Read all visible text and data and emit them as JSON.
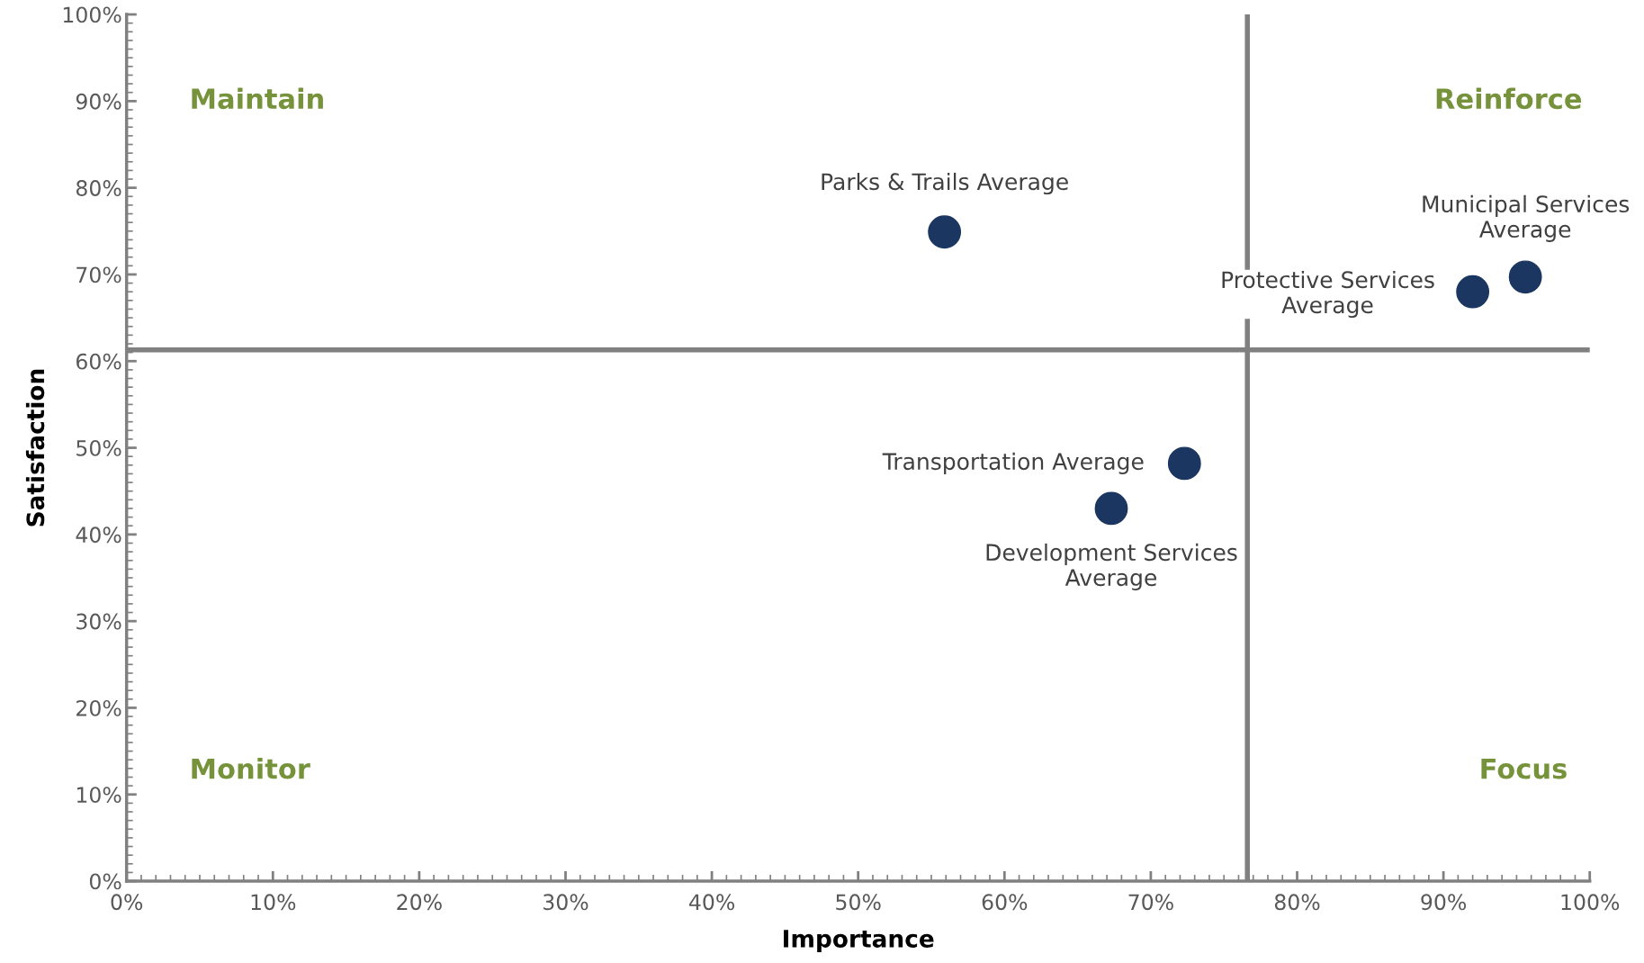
{
  "chart_data": {
    "type": "scatter",
    "xlabel": "Importance",
    "ylabel": "Satisfaction",
    "x": [
      55.9,
      95.6,
      92.0,
      72.3,
      67.3
    ],
    "series": [
      {
        "color": "#1b3660",
        "values": [
          74.9,
          69.7,
          68.0,
          48.2,
          43.0
        ]
      }
    ],
    "marker": "circle",
    "grid": false,
    "legend": false,
    "xlim": [
      0,
      100
    ],
    "ylim": [
      0,
      100
    ],
    "xticks": [
      {
        "value": 0,
        "label": "0%"
      },
      {
        "value": 10,
        "label": "10%"
      },
      {
        "value": 20,
        "label": "20%"
      },
      {
        "value": 30,
        "label": "30%"
      },
      {
        "value": 40,
        "label": "40%"
      },
      {
        "value": 50,
        "label": "50%"
      },
      {
        "value": 60,
        "label": "60%"
      },
      {
        "value": 70,
        "label": "70%"
      },
      {
        "value": 80,
        "label": "80%"
      },
      {
        "value": 90,
        "label": "90%"
      },
      {
        "value": 100,
        "label": "100%"
      }
    ],
    "yticks": [
      {
        "value": 0,
        "label": "0%"
      },
      {
        "value": 10,
        "label": "10%"
      },
      {
        "value": 20,
        "label": "20%"
      },
      {
        "value": 30,
        "label": "30%"
      },
      {
        "value": 40,
        "label": "40%"
      },
      {
        "value": 50,
        "label": "50%"
      },
      {
        "value": 60,
        "label": "60%"
      },
      {
        "value": 70,
        "label": "70%"
      },
      {
        "value": 80,
        "label": "80%"
      },
      {
        "value": 90,
        "label": "90%"
      },
      {
        "value": 100,
        "label": "100%"
      }
    ],
    "ref_lines": [
      {
        "axis": "x",
        "value": 76.6,
        "color": "#808080"
      },
      {
        "axis": "y",
        "value": 61.3,
        "color": "#808080"
      }
    ],
    "annotations": [
      {
        "text": "Parks & Trails Average",
        "x": 55.9,
        "y": 74.9
      },
      {
        "text": "Municipal Services\nAverage",
        "x": 95.6,
        "y": 69.7
      },
      {
        "text": "Protective Services\nAverage",
        "x": 92.0,
        "y": 68.0
      },
      {
        "text": "Transportation Average",
        "x": 72.3,
        "y": 48.2
      },
      {
        "text": "Development Services\nAverage",
        "x": 67.3,
        "y": 43.0
      },
      "Maintain",
      "Reinforce",
      "Monitor",
      "Focus"
    ]
  }
}
